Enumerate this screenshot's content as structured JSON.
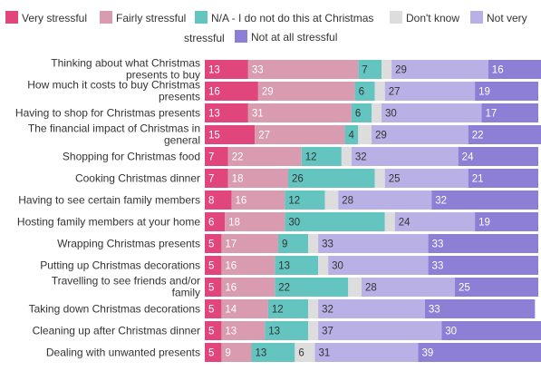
{
  "chart_data": {
    "type": "bar",
    "orientation": "horizontal",
    "stacked": true,
    "title": "",
    "xlabel": "",
    "ylabel": "",
    "xlim": [
      0,
      100
    ],
    "grid": false,
    "legend": "top",
    "categories": [
      "Thinking about what Christmas presents to buy",
      "How much it costs to buy Christmas presents",
      "Having to shop for Christmas presents",
      "The financial impact of Christmas in general",
      "Shopping for Christmas food",
      "Cooking Christmas dinner",
      "Having to see certain family members",
      "Hosting family members at your home",
      "Wrapping Christmas presents",
      "Putting up Christmas decorations",
      "Travelling to see friends and/or family",
      "Taking down Christmas decorations",
      "Cleaning up after Christmas dinner",
      "Dealing with unwanted presents"
    ],
    "series": [
      {
        "name": "Very stressful",
        "color": "#e0457b",
        "label_color": "#ffffff",
        "values": [
          13,
          16,
          13,
          15,
          7,
          7,
          8,
          6,
          5,
          5,
          5,
          5,
          5,
          5
        ]
      },
      {
        "name": "Fairly stressful",
        "color": "#d89bb0",
        "label_color": "#ffffff",
        "values": [
          33,
          29,
          31,
          27,
          22,
          18,
          16,
          18,
          17,
          16,
          16,
          14,
          13,
          9
        ]
      },
      {
        "name": "N/A - I do not do this at Christmas",
        "color": "#64c4c0",
        "label_color": "#333333",
        "values": [
          7,
          6,
          6,
          4,
          12,
          26,
          12,
          30,
          9,
          13,
          22,
          12,
          13,
          13
        ]
      },
      {
        "name": "Don't know",
        "color": "#dddddd",
        "label_color": "#333333",
        "values": [
          3,
          3,
          3,
          4,
          3,
          3,
          4,
          3,
          3,
          3,
          4,
          3,
          3,
          6
        ]
      },
      {
        "name": "Not very stressful",
        "color": "#b9b1e6",
        "label_color": "#333333",
        "values": [
          29,
          27,
          30,
          29,
          32,
          25,
          28,
          24,
          33,
          30,
          28,
          32,
          37,
          31
        ]
      },
      {
        "name": "Not at all stressful",
        "color": "#8e7fd6",
        "label_color": "#ffffff",
        "values": [
          16,
          19,
          17,
          22,
          24,
          21,
          32,
          19,
          33,
          33,
          25,
          33,
          30,
          39
        ]
      }
    ],
    "labeled_series": [
      "Very stressful",
      "Fairly stressful",
      "N/A - I do not do this at Christmas",
      "Not very stressful",
      "Not at all stressful"
    ],
    "labeled_extra": [
      {
        "series": "Don't know",
        "category": "Dealing with unwanted presents"
      }
    ]
  }
}
